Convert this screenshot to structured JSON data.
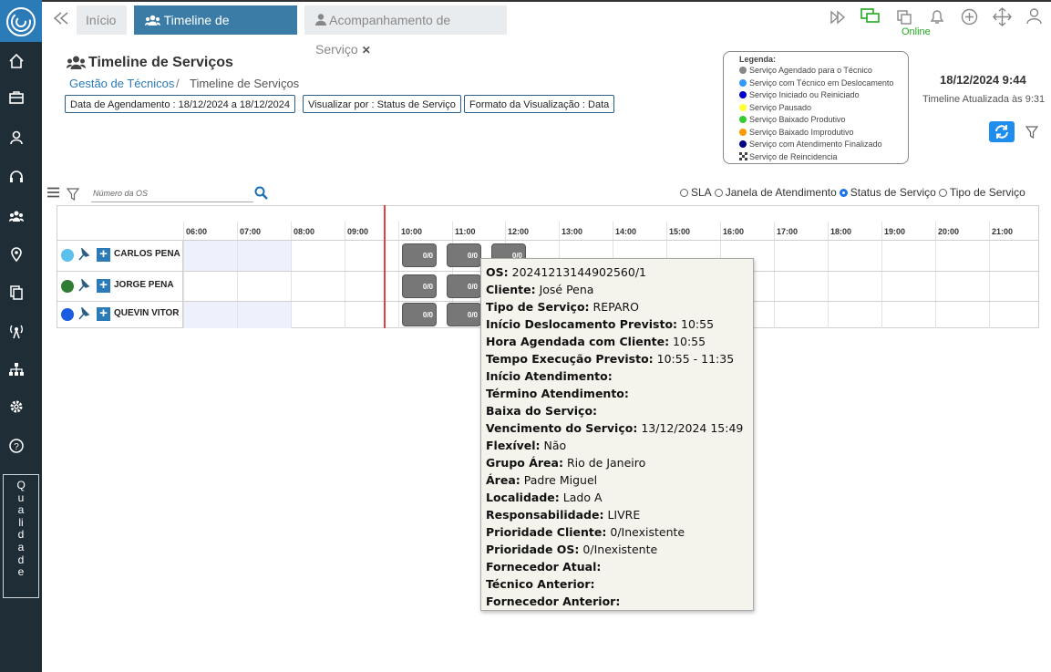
{
  "tabs": [
    "Início",
    "Timeline de Serviços",
    "Acompanhamento de Serviço"
  ],
  "status": "Online",
  "header": {
    "title": "Timeline de Serviços",
    "breadcrumb": [
      "Gestão de Técnicos",
      "Timeline de Serviços"
    ]
  },
  "filters": [
    "Data de Agendamento : 18/12/2024 a 18/12/2024",
    "Visualizar por : Status de Serviço",
    "Formato da Visualização : Data"
  ],
  "legend": {
    "title": "Legenda:",
    "items": [
      {
        "label": "Serviço Agendado para o Técnico",
        "color": "#888888"
      },
      {
        "label": "Serviço com Técnico em Deslocamento",
        "color": "#3399ff"
      },
      {
        "label": "Serviço Iniciado ou Reiniciado",
        "color": "#0000cc"
      },
      {
        "label": "Serviço Pausado",
        "color": "#ffff33"
      },
      {
        "label": "Serviço Baixado Produtivo",
        "color": "#33cc33"
      },
      {
        "label": "Serviço Baixado Improdutivo",
        "color": "#ff9900"
      },
      {
        "label": "Serviço com Atendimento Finalizado",
        "color": "#000080"
      },
      {
        "label": "Serviço de Reincidencia",
        "color": null
      }
    ]
  },
  "datetime": "18/12/2024 9:44",
  "updated": "Timeline Atualizada às 9:31",
  "search_placeholder": "Número da OS",
  "view_options": [
    "SLA",
    "Janela de Atendimento",
    "Status de Serviço",
    "Tipo de Serviço"
  ],
  "selected_view": 2,
  "hours": [
    "06:00",
    "07:00",
    "08:00",
    "09:00",
    "10:00",
    "11:00",
    "12:00",
    "13:00",
    "14:00",
    "15:00",
    "16:00",
    "17:00",
    "18:00",
    "19:00",
    "20:00",
    "21:00"
  ],
  "technicians": [
    {
      "name": "CARLOS PENA",
      "color": "#5bc0eb",
      "jobs": [
        "0/0",
        "0/0",
        "0/0"
      ]
    },
    {
      "name": "JORGE PENA",
      "color": "#2e7d32",
      "jobs": [
        "0/0",
        "0/0"
      ]
    },
    {
      "name": "QUEVIN VITOR",
      "color": "#1a5ce0",
      "jobs": [
        "0/0",
        "0/0"
      ]
    }
  ],
  "tooltip": [
    {
      "label": "OS:",
      "value": "20241213144902560/1"
    },
    {
      "label": "Cliente:",
      "value": "José Pena"
    },
    {
      "label": "Tipo de Serviço:",
      "value": "REPARO"
    },
    {
      "label": "Início Deslocamento Previsto:",
      "value": "10:55"
    },
    {
      "label": "Hora Agendada com Cliente:",
      "value": "10:55"
    },
    {
      "label": "Tempo Execução Previsto:",
      "value": "10:55 - 11:35"
    },
    {
      "label": "Início Atendimento:",
      "value": null
    },
    {
      "label": "Término Atendimento:",
      "value": null
    },
    {
      "label": "Baixa do Serviço:",
      "value": null
    },
    {
      "label": "Vencimento do Serviço:",
      "value": "13/12/2024 15:49"
    },
    {
      "label": "Flexível:",
      "value": "Não"
    },
    {
      "label": "Grupo Área:",
      "value": "Rio de Janeiro"
    },
    {
      "label": "Área:",
      "value": "Padre Miguel"
    },
    {
      "label": "Localidade:",
      "value": "Lado A"
    },
    {
      "label": "Responsabilidade:",
      "value": "LIVRE"
    },
    {
      "label": "Prioridade Cliente:",
      "value": "0/Inexistente"
    },
    {
      "label": "Prioridade OS:",
      "value": "0/Inexistente"
    },
    {
      "label": "Fornecedor Atual:",
      "value": null
    },
    {
      "label": "Técnico Anterior:",
      "value": null
    },
    {
      "label": "Fornecedor Anterior:",
      "value": null
    }
  ],
  "sidebar_label": "Qualidade"
}
